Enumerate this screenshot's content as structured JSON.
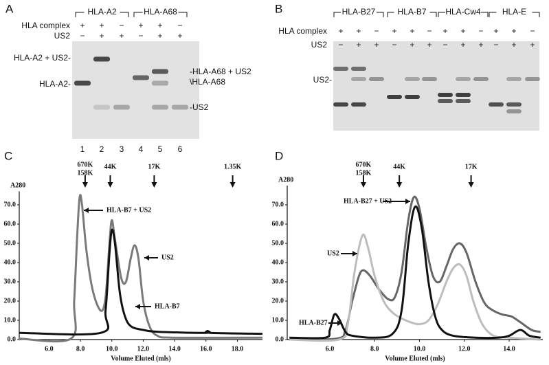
{
  "panels": {
    "A": {
      "label": "A",
      "groups": [
        "HLA-A2",
        "HLA-A68"
      ],
      "rows": [
        {
          "label": "HLA complex",
          "signs": [
            "+",
            "+",
            "−",
            "+",
            "+",
            "−"
          ]
        },
        {
          "label": "US2",
          "signs": [
            "−",
            "+",
            "+",
            "−",
            "+",
            "+"
          ]
        }
      ],
      "left_labels": [
        "HLA-A2 + US2-",
        "HLA-A2-"
      ],
      "right_labels": [
        "-HLA-A68 + US2",
        "\\HLA-A68",
        "-US2"
      ],
      "lanes": [
        "1",
        "2",
        "3",
        "4",
        "5",
        "6"
      ]
    },
    "B": {
      "label": "B",
      "groups": [
        "HLA-B27",
        "HLA-B7",
        "HLA-Cw4",
        "HLA-E"
      ],
      "rows": [
        {
          "label": "HLA complex",
          "signs": [
            "+",
            "+",
            "−",
            "+",
            "+",
            "−",
            "+",
            "+",
            "−",
            "+",
            "+",
            "−"
          ]
        },
        {
          "label": "US2",
          "signs": [
            "−",
            "+",
            "+",
            "−",
            "+",
            "+",
            "−",
            "+",
            "+",
            "−",
            "+",
            "+"
          ]
        }
      ],
      "left_labels": [
        "US2-"
      ]
    }
  },
  "chart_data": [
    {
      "type": "line",
      "label": "C",
      "xlabel": "Volume Eluted (mls)",
      "ylabel": "A280",
      "xlim": [
        4.1,
        19.6
      ],
      "ylim": [
        0,
        77
      ],
      "xticks": [
        {
          "value": 6,
          "label": "6.0"
        },
        {
          "value": 8,
          "label": "8.0"
        },
        {
          "value": 10,
          "label": "10.0"
        },
        {
          "value": 12,
          "label": "12.0"
        },
        {
          "value": 14,
          "label": "14.0"
        },
        {
          "value": 16,
          "label": "16.0"
        },
        {
          "value": 18,
          "label": "18.0"
        }
      ],
      "yticks": [
        {
          "value": 0,
          "label": "0.0"
        },
        {
          "value": 10,
          "label": "10.0"
        },
        {
          "value": 20,
          "label": "20.0"
        },
        {
          "value": 30,
          "label": "30.0"
        },
        {
          "value": 40,
          "label": "40.0"
        },
        {
          "value": 50,
          "label": "50.0"
        },
        {
          "value": 60,
          "label": "60.0"
        },
        {
          "value": 70,
          "label": "70.0"
        }
      ],
      "markers": [
        {
          "x": 8.3,
          "labels": [
            "670K",
            "158K"
          ]
        },
        {
          "x": 9.9,
          "labels": [
            "44K"
          ]
        },
        {
          "x": 12.7,
          "labels": [
            "17K"
          ]
        },
        {
          "x": 17.7,
          "labels": [
            "1.35K"
          ]
        }
      ],
      "annotations": [
        "HLA-B7 + US2",
        "US2",
        "HLA-B7"
      ],
      "series": [
        {
          "name": "HLA-B7 + US2",
          "color": "#7a7a7a",
          "x": [
            4.1,
            7.4,
            7.6,
            7.8,
            7.95,
            8.1,
            8.4,
            8.8,
            9.3,
            9.6,
            9.85,
            10.0,
            10.2,
            10.6,
            10.9,
            11.2,
            11.45,
            11.7,
            12.0,
            12.4,
            12.9,
            14.0,
            19.6
          ],
          "values": [
            0.5,
            0.5,
            20,
            55,
            74,
            70,
            45,
            25,
            15,
            22,
            50,
            62,
            52,
            32,
            30,
            42,
            49,
            42,
            20,
            7,
            2,
            1,
            1
          ]
        },
        {
          "name": "HLA-B7",
          "color": "#111111",
          "x": [
            4.1,
            9.3,
            9.6,
            9.85,
            10.0,
            10.2,
            10.5,
            10.8,
            11.2,
            12.0,
            13.0,
            16.0,
            16.1,
            16.3,
            19.6
          ],
          "values": [
            3.5,
            3.5,
            15,
            45,
            57,
            50,
            25,
            13,
            7,
            5,
            4,
            3.5,
            4.5,
            3.5,
            3
          ]
        }
      ]
    },
    {
      "type": "line",
      "label": "D",
      "xlabel": "Volume Eluted (mls)",
      "ylabel": "A280",
      "xlim": [
        4.1,
        15.5
      ],
      "ylim": [
        0,
        80
      ],
      "xticks": [
        {
          "value": 6,
          "label": "6.0"
        },
        {
          "value": 8,
          "label": "8.0"
        },
        {
          "value": 10,
          "label": "10.0"
        },
        {
          "value": 12,
          "label": "12.0"
        },
        {
          "value": 14,
          "label": "14.0"
        }
      ],
      "yticks": [
        {
          "value": 0,
          "label": "0.0"
        },
        {
          "value": 10,
          "label": "10.0"
        },
        {
          "value": 20,
          "label": "20.0"
        },
        {
          "value": 30,
          "label": "30.0"
        },
        {
          "value": 40,
          "label": "40.0"
        },
        {
          "value": 50,
          "label": "50.0"
        },
        {
          "value": 60,
          "label": "60.0"
        },
        {
          "value": 70,
          "label": "70.0"
        }
      ],
      "markers": [
        {
          "x": 7.5,
          "labels": [
            "670K",
            "158K"
          ]
        },
        {
          "x": 9.1,
          "labels": [
            "44K"
          ]
        },
        {
          "x": 12.3,
          "labels": [
            "17K"
          ]
        }
      ],
      "annotations": [
        "HLA-B27 + US2",
        "US2",
        "HLA-B27"
      ],
      "series": [
        {
          "name": "HLA-B27 + US2",
          "color": "#666666",
          "x": [
            4.2,
            6.3,
            6.7,
            7.0,
            7.3,
            7.5,
            7.8,
            8.2,
            8.6,
            8.9,
            9.2,
            9.5,
            9.75,
            10.0,
            10.3,
            10.6,
            10.9,
            11.2,
            11.5,
            11.8,
            12.1,
            12.5,
            12.9,
            13.3,
            13.7,
            14.1,
            14.5,
            15.0,
            15.4
          ],
          "values": [
            0,
            0.5,
            5,
            20,
            33,
            36,
            33,
            26,
            21,
            22,
            35,
            62,
            74,
            68,
            48,
            33,
            30,
            38,
            47,
            50,
            45,
            30,
            19,
            15,
            13,
            12,
            9,
            5,
            4
          ]
        },
        {
          "name": "US2",
          "color": "#bdbdbd",
          "x": [
            4.2,
            6.4,
            6.8,
            7.1,
            7.45,
            7.7,
            8.0,
            8.4,
            8.8,
            9.2,
            9.6,
            10.0,
            10.4,
            10.8,
            11.2,
            11.5,
            11.8,
            12.1,
            12.4,
            12.8,
            13.3,
            14.0,
            15.4
          ],
          "values": [
            0,
            0,
            8,
            35,
            54,
            48,
            33,
            20,
            14,
            11,
            9,
            8,
            10,
            18,
            30,
            37,
            39,
            33,
            20,
            8,
            2,
            1,
            0
          ]
        },
        {
          "name": "HLA-B27",
          "color": "#111111",
          "x": [
            4.2,
            5.8,
            6.0,
            6.2,
            6.4,
            6.7,
            7.0,
            8.0,
            8.8,
            9.2,
            9.5,
            9.8,
            10.1,
            10.4,
            10.7,
            11.0,
            11.5,
            12.5,
            13.5,
            14.0,
            14.5,
            14.9,
            15.4
          ],
          "values": [
            1,
            1,
            5,
            13,
            11,
            4,
            2,
            1,
            3,
            15,
            50,
            69,
            58,
            30,
            12,
            5,
            2,
            1,
            1,
            2,
            5,
            2,
            1
          ]
        }
      ]
    }
  ]
}
